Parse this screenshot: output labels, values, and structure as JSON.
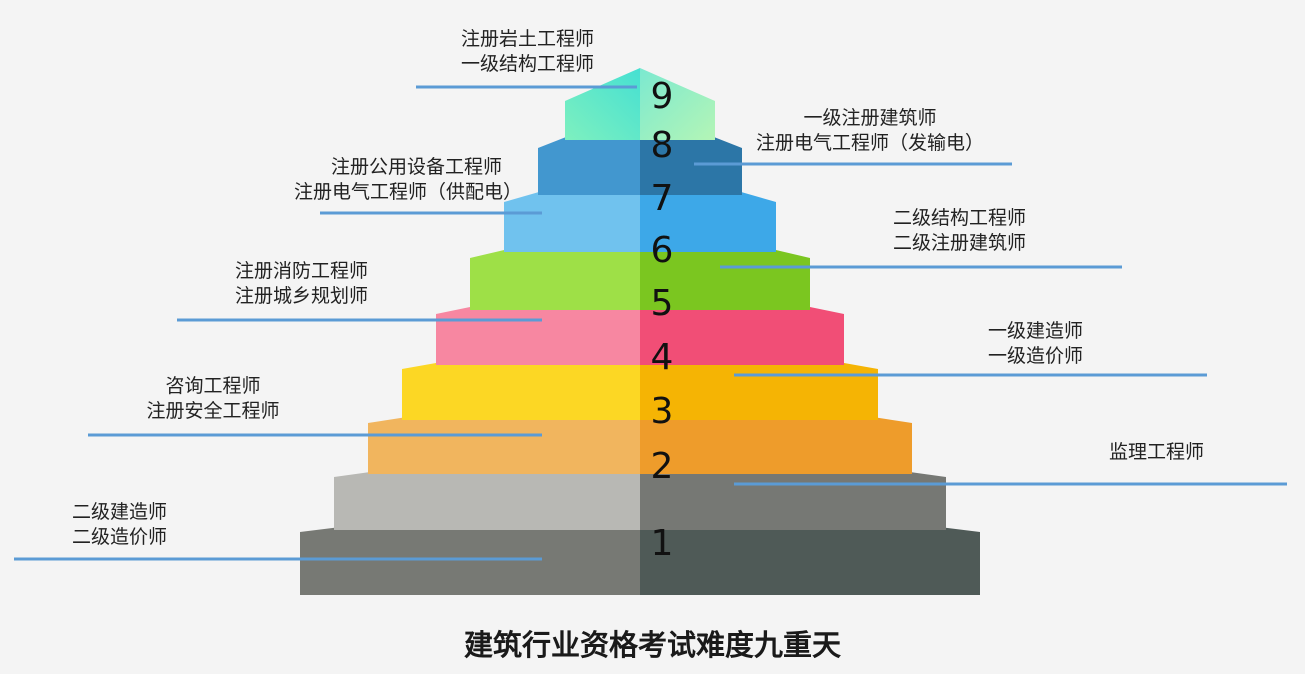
{
  "title": "建筑行业资格考试难度九重天",
  "levels": [
    {
      "number": "1",
      "left_color": "#777974",
      "right_color": "#4f5a57",
      "labels": [
        "二级建造师",
        "二级造价师"
      ]
    },
    {
      "number": "2",
      "left_color": "#b8b8b4",
      "right_color": "#767874",
      "labels": [
        "监理工程师"
      ]
    },
    {
      "number": "3",
      "left_color": "#f1b55e",
      "right_color": "#ee9c2b",
      "labels": [
        "咨询工程师",
        "注册安全工程师"
      ]
    },
    {
      "number": "4",
      "left_color": "#fcd724",
      "right_color": "#f5b404",
      "labels": [
        "一级建造师",
        "一级造价师"
      ]
    },
    {
      "number": "5",
      "left_color": "#f787a1",
      "right_color": "#f14e76",
      "labels": [
        "注册消防工程师",
        "注册城乡规划师"
      ]
    },
    {
      "number": "6",
      "left_color": "#9ee047",
      "right_color": "#7bc620",
      "labels": [
        "二级结构工程师",
        "二级注册建筑师"
      ]
    },
    {
      "number": "7",
      "left_color": "#70c2ee",
      "right_color": "#3da8e8",
      "labels": [
        "注册公用设备工程师",
        "注册电气工程师（供配电）"
      ]
    },
    {
      "number": "8",
      "left_color": "#4297cf",
      "right_color": "#2c76a7",
      "labels": [
        "一级注册建筑师",
        "注册电气工程师（发输电）"
      ]
    },
    {
      "number": "9",
      "left_color": "#5fe8c9",
      "right_color": "#9ef2be",
      "labels": [
        "注册岩土工程师",
        "一级结构工程师"
      ]
    }
  ],
  "leader_line_color": "#5b9bd5"
}
